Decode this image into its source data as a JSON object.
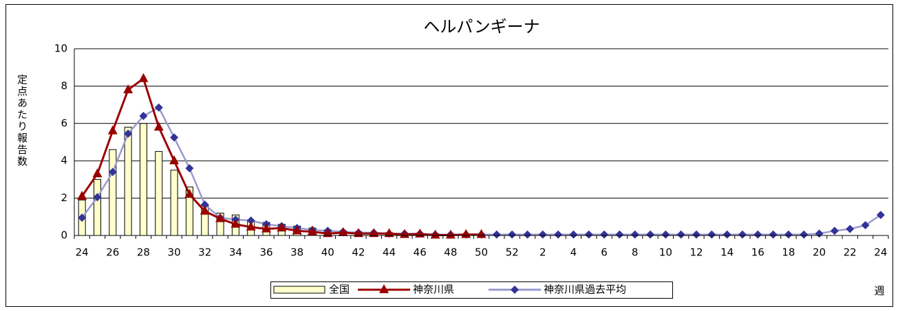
{
  "chart_data": {
    "type": "bar-line",
    "title": "ヘルパンギーナ",
    "y_label": "定点あたり報告数",
    "x_label": "週",
    "categories": [
      "24",
      null,
      "26",
      null,
      "28",
      null,
      "30",
      null,
      "32",
      null,
      "34",
      null,
      "36",
      null,
      "38",
      null,
      "40",
      null,
      "42",
      null,
      "44",
      null,
      "46",
      null,
      "48",
      null,
      "50",
      null,
      "52",
      null,
      "2",
      null,
      "4",
      null,
      "6",
      null,
      "8",
      null,
      "10",
      null,
      "12",
      null,
      "14",
      null,
      "16",
      null,
      "18",
      null,
      "20",
      null,
      "22",
      null,
      "24"
    ],
    "series": [
      {
        "name": "全国",
        "kind": "bar",
        "color": "#ffffcc",
        "values": [
          1.9,
          3.0,
          4.6,
          5.8,
          6.0,
          4.5,
          3.5,
          2.6,
          1.6,
          1.2,
          1.1,
          0.8,
          0.7,
          0.6,
          0.5,
          0.4,
          0.3,
          0.25,
          0.2,
          0.15,
          0.15,
          0.1,
          0.1,
          0.1,
          0.05,
          0.05,
          0.05,
          null,
          null,
          null,
          null,
          null,
          null,
          null,
          null,
          null,
          null,
          null,
          null,
          null,
          null,
          null,
          null,
          null,
          null,
          null,
          null,
          null,
          null,
          null,
          null,
          null,
          null
        ]
      },
      {
        "name": "神奈川県",
        "kind": "line",
        "marker": "triangle",
        "color": "#990000",
        "values": [
          2.1,
          3.3,
          5.6,
          7.8,
          8.4,
          5.8,
          4.0,
          2.2,
          1.3,
          0.9,
          0.6,
          0.45,
          0.35,
          0.4,
          0.25,
          0.2,
          0.1,
          0.15,
          0.1,
          0.1,
          0.1,
          0.05,
          0.08,
          0.02,
          0.02,
          0.05,
          0.05,
          null,
          null,
          null,
          null,
          null,
          null,
          null,
          null,
          null,
          null,
          null,
          null,
          null,
          null,
          null,
          null,
          null,
          null,
          null,
          null,
          null,
          null,
          null,
          null,
          null,
          null
        ]
      },
      {
        "name": "神奈川県過去平均",
        "kind": "line",
        "marker": "diamond",
        "color": "#9999cc",
        "marker_color": "#333399",
        "values": [
          0.95,
          2.05,
          3.4,
          5.45,
          6.4,
          6.85,
          5.25,
          3.6,
          1.65,
          0.95,
          0.85,
          0.8,
          0.6,
          0.5,
          0.4,
          0.3,
          0.25,
          0.2,
          0.15,
          0.15,
          0.1,
          0.1,
          0.1,
          0.05,
          0.05,
          0.05,
          0.05,
          0.05,
          0.05,
          0.05,
          0.05,
          0.05,
          0.05,
          0.05,
          0.05,
          0.05,
          0.05,
          0.05,
          0.05,
          0.05,
          0.05,
          0.05,
          0.05,
          0.05,
          0.05,
          0.05,
          0.05,
          0.05,
          0.1,
          0.25,
          0.35,
          0.55,
          1.1
        ]
      }
    ],
    "ylim": [
      0,
      10
    ],
    "yticks": [
      0,
      2,
      4,
      6,
      8,
      10
    ],
    "grid": true
  }
}
